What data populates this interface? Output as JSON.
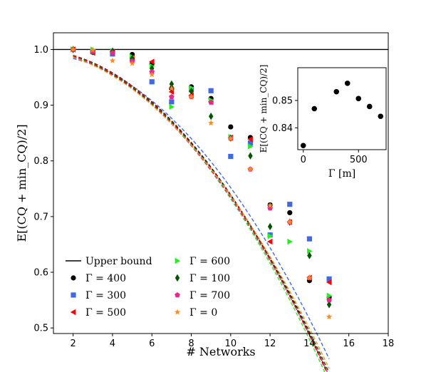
{
  "chart_data": [
    {
      "type": "scatter",
      "xlabel": "# Networks",
      "ylabel": "E[(CQ + min_CQ)/2]",
      "xlim": [
        1,
        18
      ],
      "ylim": [
        0.49,
        1.03
      ],
      "xticks": [
        2,
        4,
        6,
        8,
        10,
        12,
        14,
        16,
        18
      ],
      "yticks": [
        0.5,
        0.6,
        0.7,
        0.8,
        0.9,
        1.0
      ],
      "ytick_labels": [
        "0.5",
        "0.6",
        "0.7",
        "0.8",
        "0.9",
        "1.0"
      ],
      "grid": false,
      "legend": "lower-left, 2 columns",
      "upper_bound": {
        "label": "Upper bound",
        "value": 1.0,
        "color": "#000000"
      },
      "series": [
        {
          "name": "Γ =  400",
          "marker": "circle",
          "color": "#000000",
          "x": [
            2,
            3,
            4,
            5,
            6,
            7,
            8,
            9,
            10,
            11,
            12,
            13,
            14,
            15
          ],
          "y": [
            1.0,
            0.995,
            0.997,
            0.991,
            0.974,
            0.93,
            0.933,
            0.912,
            0.861,
            0.842,
            0.721,
            0.707,
            0.585,
            0.555
          ],
          "fit": [
            1.0,
            -0.0001,
            -0.0026
          ]
        },
        {
          "name": "Γ =  300",
          "marker": "square",
          "color": "#4169e1",
          "x": [
            2,
            3,
            4,
            5,
            6,
            7,
            8,
            9,
            10,
            11,
            12,
            13,
            14,
            15
          ],
          "y": [
            1.0,
            0.996,
            0.992,
            0.983,
            0.942,
            0.906,
            0.928,
            0.926,
            0.808,
            0.832,
            0.667,
            0.722,
            0.66,
            0.588
          ],
          "fit": [
            0.992,
            0.001,
            -0.0025
          ]
        },
        {
          "name": "Γ =  500",
          "marker": "triangle-left",
          "color": "#ff0000",
          "x": [
            2,
            3,
            4,
            5,
            6,
            7,
            8,
            9,
            10,
            11,
            12,
            13,
            14,
            15
          ],
          "y": [
            1.0,
            0.994,
            0.996,
            0.985,
            0.978,
            0.924,
            0.918,
            0.906,
            0.842,
            0.839,
            0.655,
            0.69,
            0.59,
            0.582
          ],
          "fit": [
            1.0,
            -0.0003,
            -0.0026
          ]
        },
        {
          "name": "Γ =  600",
          "marker": "triangle-right",
          "color": "#22ee22",
          "x": [
            2,
            3,
            4,
            5,
            6,
            7,
            8,
            9,
            10,
            11,
            12,
            13,
            14,
            15
          ],
          "y": [
            1.0,
            1.0,
            0.997,
            0.987,
            0.97,
            0.897,
            0.931,
            0.909,
            0.843,
            0.826,
            0.665,
            0.655,
            0.638,
            0.558
          ],
          "fit": [
            1.0,
            -0.0008,
            -0.0026
          ]
        },
        {
          "name": "Γ =  100",
          "marker": "diamond",
          "color": "#005500",
          "x": [
            2,
            3,
            4,
            5,
            6,
            7,
            8,
            9,
            10,
            11,
            12,
            13,
            14,
            15
          ],
          "y": [
            1.0,
            0.996,
            0.997,
            0.984,
            0.966,
            0.938,
            0.925,
            0.88,
            0.841,
            0.809,
            0.682,
            0.69,
            0.63,
            0.542
          ],
          "fit": [
            1.0,
            -0.0012,
            -0.0025
          ]
        },
        {
          "name": "Γ =  700",
          "marker": "pentagon",
          "color": "#e8288c",
          "x": [
            2,
            3,
            4,
            5,
            6,
            7,
            8,
            9,
            10,
            11,
            12,
            13,
            14,
            15
          ],
          "y": [
            1.0,
            0.996,
            0.994,
            0.979,
            0.96,
            0.915,
            0.915,
            0.905,
            0.84,
            0.785,
            0.715,
            0.69,
            0.59,
            0.55
          ],
          "fit": [
            1.0,
            -0.0016,
            -0.0025
          ]
        },
        {
          "name": "Γ =  0",
          "marker": "star",
          "color": "#ff8c1a",
          "x": [
            2,
            3,
            4,
            5,
            6,
            7,
            8,
            9,
            10,
            11,
            12,
            13,
            14,
            15
          ],
          "y": [
            1.0,
            0.999,
            0.98,
            0.975,
            0.955,
            0.93,
            0.915,
            0.868,
            0.84,
            0.785,
            0.72,
            0.69,
            0.59,
            0.52
          ],
          "fit": [
            1.0,
            -0.0022,
            -0.0024
          ]
        }
      ]
    },
    {
      "type": "scatter",
      "xlabel": "Γ [m]",
      "ylabel": "E[(CQ + min_CQ)/2]",
      "xlim": [
        -50,
        750
      ],
      "ylim": [
        0.832,
        0.862
      ],
      "xticks": [
        0,
        500
      ],
      "yticks": [
        0.84,
        0.85
      ],
      "ytick_labels": [
        "0.84",
        "0.85"
      ],
      "series": [
        {
          "marker": "circle",
          "color": "#000000",
          "x": [
            0,
            100,
            300,
            400,
            500,
            600,
            700
          ],
          "y": [
            0.8335,
            0.847,
            0.8532,
            0.8563,
            0.8507,
            0.8478,
            0.8442
          ]
        }
      ]
    }
  ]
}
